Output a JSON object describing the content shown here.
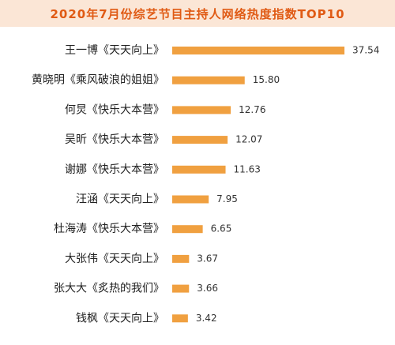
{
  "chart_data": {
    "type": "bar",
    "orientation": "horizontal",
    "title": "2020年7月份综艺节目主持人网络热度指数TOP10",
    "categories": [
      "王一博《天天向上》",
      "黄晓明《乘风破浪的姐姐》",
      "何炅《快乐大本营》",
      "吴昕《快乐大本营》",
      "谢娜《快乐大本营》",
      "汪涵《天天向上》",
      "杜海涛《快乐大本营》",
      "大张伟《天天向上》",
      "张大大《炙热的我们》",
      "钱枫《天天向上》"
    ],
    "values": [
      37.54,
      15.8,
      12.76,
      12.07,
      11.63,
      7.95,
      6.65,
      3.67,
      3.66,
      3.42
    ],
    "value_labels": [
      "37.54",
      "15.80",
      "12.76",
      "12.07",
      "11.63",
      "7.95",
      "6.65",
      "3.67",
      "3.66",
      "3.42"
    ],
    "xlim": [
      0,
      37.54
    ],
    "grid": false,
    "legend": "none",
    "bar_color": "#f0a040",
    "title_color": "#e05a14",
    "title_background": "#fbe6d6"
  }
}
